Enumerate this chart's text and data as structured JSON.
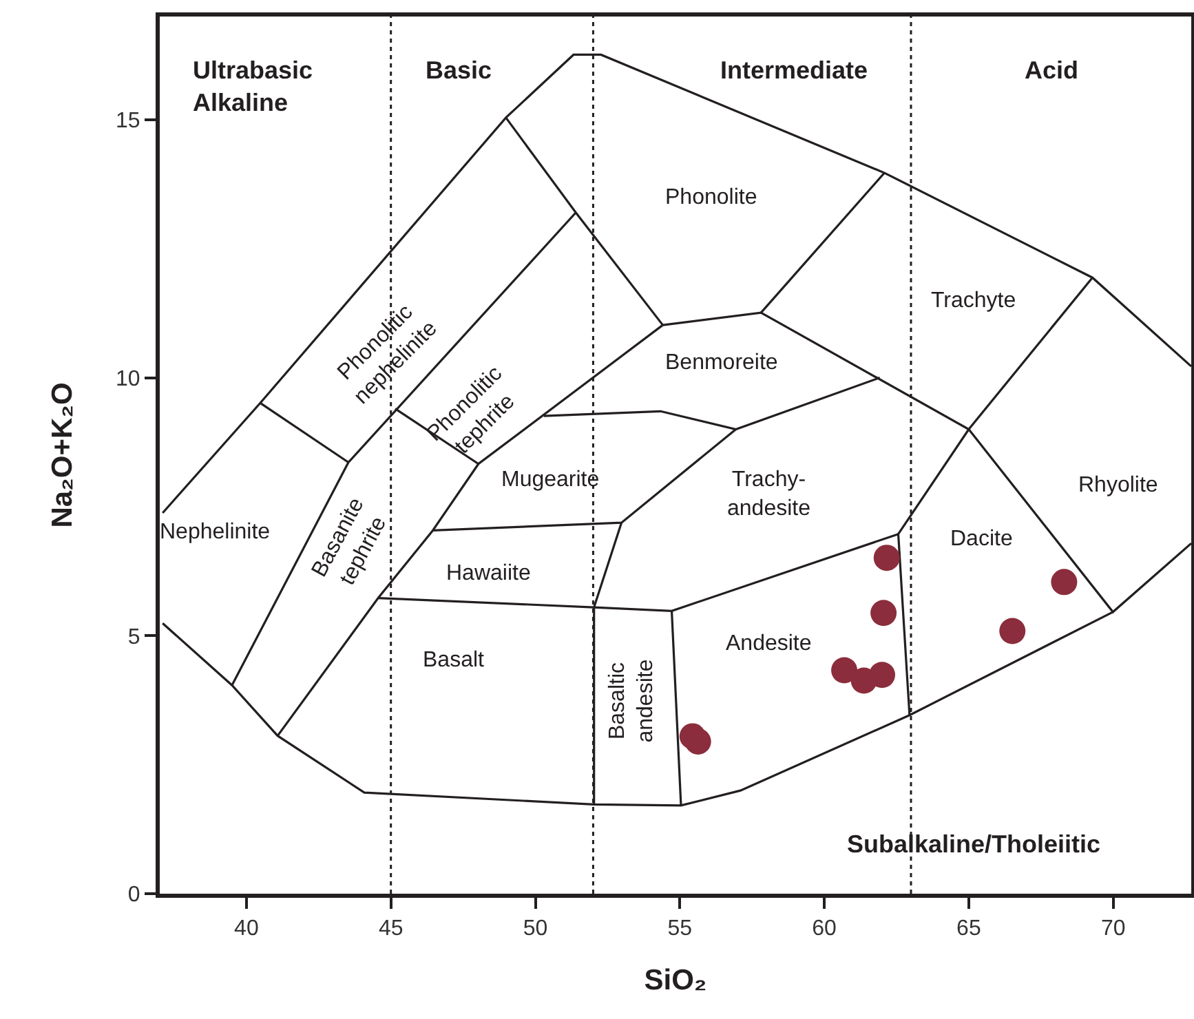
{
  "chart_data": {
    "type": "scatter",
    "xlabel": "SiO₂",
    "ylabel": "Na₂O+K₂O",
    "xlim": [
      37,
      72.7
    ],
    "ylim": [
      0,
      17
    ],
    "xticks": [
      40,
      45,
      50,
      55,
      60,
      65,
      70
    ],
    "yticks": [
      0,
      5,
      10,
      15
    ],
    "grid": false,
    "series": [
      {
        "marker": "circle",
        "color": "#8b2d3c",
        "x": [
          55.44,
          55.63,
          62.16,
          62.05,
          60.69,
          61.37,
          62.0,
          66.51,
          68.3
        ],
        "values": [
          3.05,
          2.95,
          6.51,
          5.44,
          4.33,
          4.13,
          4.24,
          5.09,
          6.04
        ]
      },
      {
        "type": "line",
        "color": "#231f20",
        "x": [
          37.1,
          40.48,
          48.98,
          51.32,
          52.27,
          62.08,
          69.28,
          72.7
        ],
        "values": [
          7.38,
          9.51,
          15.04,
          16.26,
          16.26,
          13.97,
          11.94,
          10.22
        ]
      },
      {
        "type": "line",
        "color": "#231f20",
        "x": [
          40.48,
          43.53
        ],
        "values": [
          9.51,
          8.36
        ]
      },
      {
        "type": "line",
        "color": "#231f20",
        "x": [
          39.5,
          43.53,
          51.4
        ],
        "values": [
          4.04,
          8.36,
          13.2
        ]
      },
      {
        "type": "line",
        "color": "#231f20",
        "x": [
          48.98,
          51.4,
          54.41
        ],
        "values": [
          15.04,
          13.2,
          11.02
        ]
      },
      {
        "type": "line",
        "color": "#231f20",
        "x": [
          45.15,
          48.03
        ],
        "values": [
          9.4,
          8.33
        ]
      },
      {
        "type": "line",
        "color": "#231f20",
        "x": [
          54.41,
          48.03,
          46.45,
          44.56,
          41.08
        ],
        "values": [
          11.02,
          8.33,
          7.04,
          5.73,
          3.06
        ]
      },
      {
        "type": "line",
        "color": "#231f20",
        "x": [
          50.29,
          54.33,
          56.94,
          61.92
        ],
        "values": [
          9.26,
          9.35,
          9.0,
          10.0
        ]
      },
      {
        "type": "line",
        "color": "#231f20",
        "x": [
          54.41,
          57.81,
          65.0,
          69.99,
          72.7
        ],
        "values": [
          11.02,
          11.26,
          9.0,
          5.46,
          6.79
        ]
      },
      {
        "type": "line",
        "color": "#231f20",
        "x": [
          57.81,
          62.08
        ],
        "values": [
          11.26,
          13.97
        ]
      },
      {
        "type": "line",
        "color": "#231f20",
        "x": [
          69.28,
          65.0,
          62.56,
          62.95
        ],
        "values": [
          11.94,
          9.0,
          6.97,
          3.46
        ]
      },
      {
        "type": "line",
        "color": "#231f20",
        "x": [
          37.1,
          39.5,
          41.08,
          44.08,
          52.03,
          55.04,
          57.1,
          62.95,
          69.99
        ],
        "values": [
          5.24,
          4.04,
          3.06,
          1.96,
          1.73,
          1.71,
          2.0,
          3.46,
          5.46
        ]
      },
      {
        "type": "line",
        "color": "#231f20",
        "x": [
          54.72,
          55.04
        ],
        "values": [
          5.48,
          1.71
        ]
      },
      {
        "type": "line",
        "color": "#231f20",
        "x": [
          52.98,
          52.03,
          52.03
        ],
        "values": [
          7.19,
          5.55,
          1.73
        ]
      },
      {
        "type": "line",
        "color": "#231f20",
        "x": [
          46.45,
          52.98,
          56.94
        ],
        "values": [
          7.04,
          7.19,
          9.0
        ]
      },
      {
        "type": "line",
        "color": "#231f20",
        "x": [
          44.56,
          52.03,
          54.72,
          62.56
        ],
        "values": [
          5.73,
          5.55,
          5.48,
          6.97
        ]
      }
    ],
    "ref_lines": [
      {
        "axis": "x",
        "value": 45,
        "color": "#231f20",
        "line_style": "dotted"
      },
      {
        "axis": "x",
        "value": 52,
        "color": "#231f20",
        "line_style": "dotted"
      },
      {
        "axis": "x",
        "value": 63,
        "color": "#231f20",
        "line_style": "dotted"
      }
    ],
    "annotations": [
      "Ultrabasic\nAlkaline",
      "Basic",
      "Intermediate",
      "Acid",
      "Phonolitic\nnephelinite",
      "Phonolitic\ntephrite",
      "Phonolite",
      "Trachyte",
      "Benmoreite",
      "Mugearite",
      "Trachy-\nandesite",
      "Rhyolite",
      "Nephelinite",
      "Basanite\ntephrite",
      "Hawaiite",
      "Dacite",
      "Basalt",
      "Basaltic\nandesite",
      "Andesite",
      "Subalkaline/Tholeiitic"
    ]
  }
}
